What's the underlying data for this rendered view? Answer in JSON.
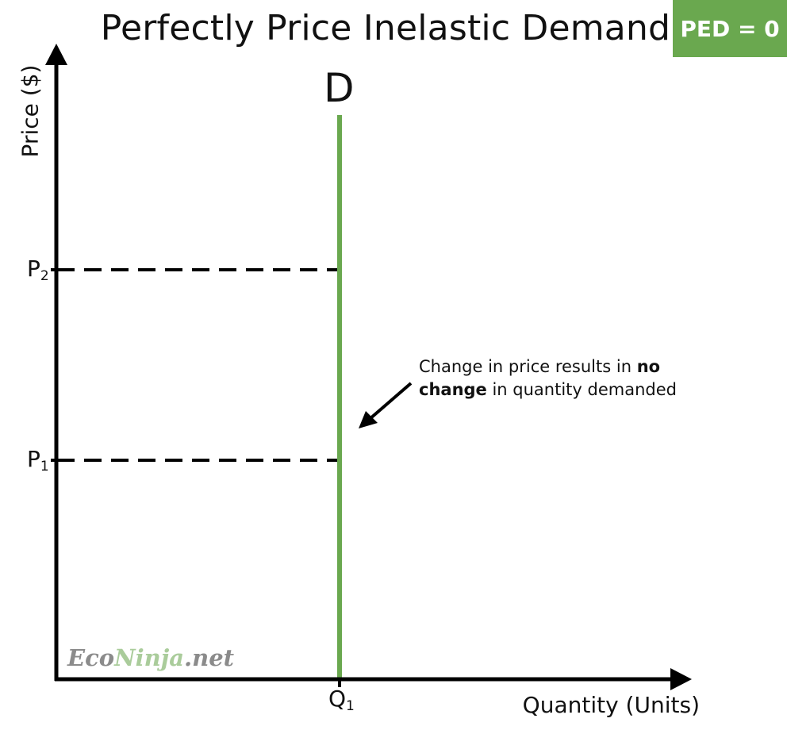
{
  "title": "Perfectly Price Inelastic Demand",
  "badge": {
    "text": "PED = 0",
    "color": "#6aa84f"
  },
  "axes": {
    "ylabel": "Price ($)",
    "xlabel": "Quantity (Units)"
  },
  "curve": {
    "label": "D",
    "color": "#6aa84f"
  },
  "price_levels": [
    {
      "main": "P",
      "sub": "2"
    },
    {
      "main": "P",
      "sub": "1"
    }
  ],
  "quantity_level": {
    "main": "Q",
    "sub": "1"
  },
  "annotation": {
    "pre": "Change in price results in ",
    "bold": "no change",
    "post": " in quantity demanded"
  },
  "watermark": {
    "part1": "Eco",
    "part2": "Ninja",
    "part3": ".net"
  },
  "chart_data": {
    "type": "line",
    "series": [
      {
        "name": "D",
        "x": [
          "Q1",
          "Q1"
        ],
        "y": [
          null,
          null
        ]
      }
    ],
    "reference_lines": [
      "P1",
      "P2"
    ],
    "grid": false
  }
}
